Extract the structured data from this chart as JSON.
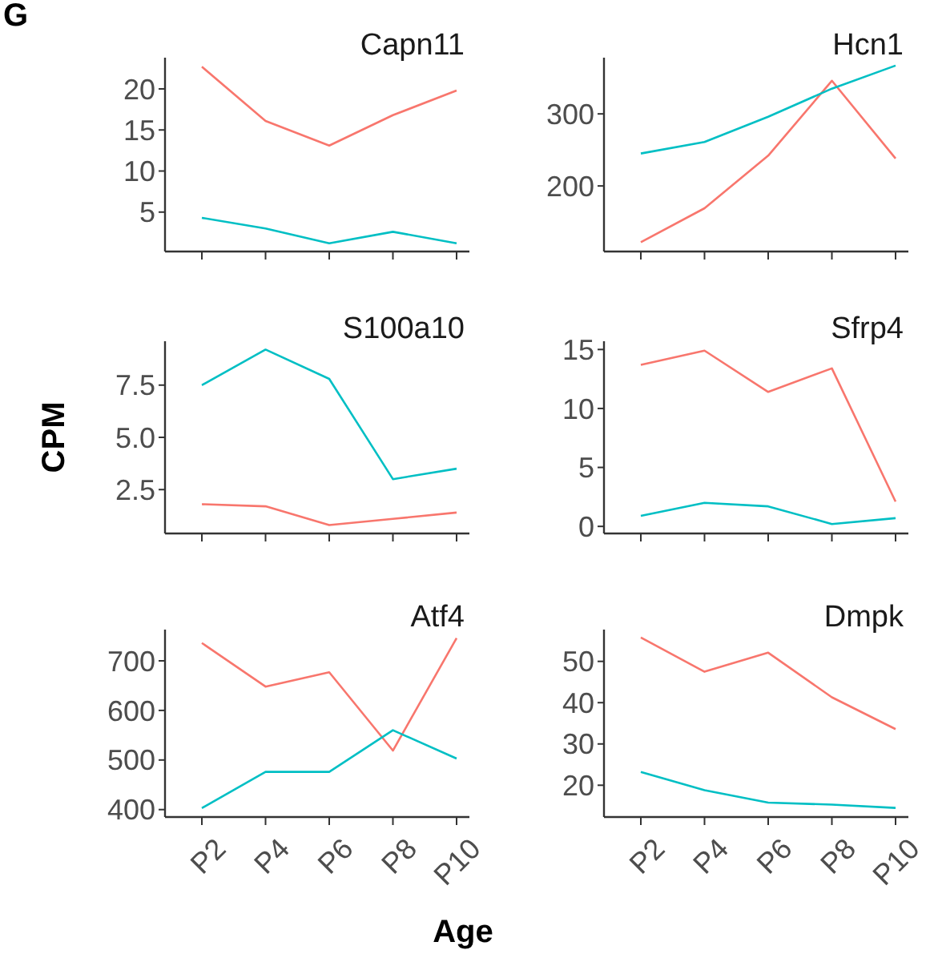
{
  "chart_data": [
    {
      "type": "line",
      "title": "Capn11",
      "annotations": [
        "G"
      ],
      "ylim": [
        0.2,
        23.8
      ],
      "yticks": [
        5,
        10,
        15,
        20
      ],
      "grid": false,
      "tick_labels": "y",
      "series": [
        {
          "color": "#f8766d",
          "values": [
            22.7,
            16.1,
            13.1,
            16.8,
            19.8
          ]
        },
        {
          "color": "#00bfc4",
          "values": [
            4.3,
            3.0,
            1.2,
            2.6,
            1.2
          ]
        }
      ]
    },
    {
      "type": "line",
      "title": "Hcn1",
      "ylim": [
        109,
        378
      ],
      "yticks": [
        200,
        300
      ],
      "grid": false,
      "tick_labels": "y",
      "series": [
        {
          "color": "#f8766d",
          "values": [
            122,
            169,
            242,
            346,
            238
          ]
        },
        {
          "color": "#00bfc4",
          "values": [
            245,
            261,
            296,
            335,
            367
          ]
        }
      ]
    },
    {
      "type": "line",
      "title": "S100a10",
      "ylabel": "CPM",
      "ylim": [
        0.4,
        9.6
      ],
      "yticks": [
        {
          "value": 2.5,
          "label": "2.5"
        },
        {
          "value": 5,
          "label": "5.0"
        },
        {
          "value": 7.5,
          "label": "7.5"
        }
      ],
      "grid": false,
      "tick_labels": "y",
      "series": [
        {
          "color": "#f8766d",
          "values": [
            1.8,
            1.7,
            0.8,
            1.1,
            1.4
          ]
        },
        {
          "color": "#00bfc4",
          "values": [
            7.5,
            9.2,
            7.8,
            3.0,
            3.5
          ]
        }
      ]
    },
    {
      "type": "line",
      "title": "Sfrp4",
      "ylim": [
        -0.6,
        15.7
      ],
      "yticks": [
        0,
        5,
        10,
        15
      ],
      "grid": false,
      "tick_labels": "y",
      "series": [
        {
          "color": "#f8766d",
          "values": [
            13.7,
            14.9,
            11.4,
            13.4,
            2.1
          ]
        },
        {
          "color": "#00bfc4",
          "values": [
            0.9,
            2.0,
            1.7,
            0.2,
            0.7
          ]
        }
      ]
    },
    {
      "type": "line",
      "title": "Atf4",
      "categories": [
        "P2",
        "P4",
        "P6",
        "P8",
        "P10"
      ],
      "ylim": [
        385,
        763
      ],
      "yticks": [
        400,
        500,
        600,
        700
      ],
      "grid": false,
      "series": [
        {
          "color": "#f8766d",
          "values": [
            736,
            648,
            677,
            519,
            746
          ]
        },
        {
          "color": "#00bfc4",
          "values": [
            403,
            476,
            476,
            560,
            503
          ]
        }
      ]
    },
    {
      "type": "line",
      "title": "Dmpk",
      "xlabel": "Age",
      "categories": [
        "P2",
        "P4",
        "P6",
        "P8",
        "P10"
      ],
      "ylim": [
        12.3,
        57.7
      ],
      "yticks": [
        20,
        30,
        40,
        50
      ],
      "grid": false,
      "series": [
        {
          "color": "#f8766d",
          "values": [
            55.8,
            47.5,
            52.1,
            41.3,
            33.6
          ]
        },
        {
          "color": "#00bfc4",
          "values": [
            23.2,
            18.8,
            15.8,
            15.3,
            14.5
          ]
        }
      ]
    }
  ]
}
